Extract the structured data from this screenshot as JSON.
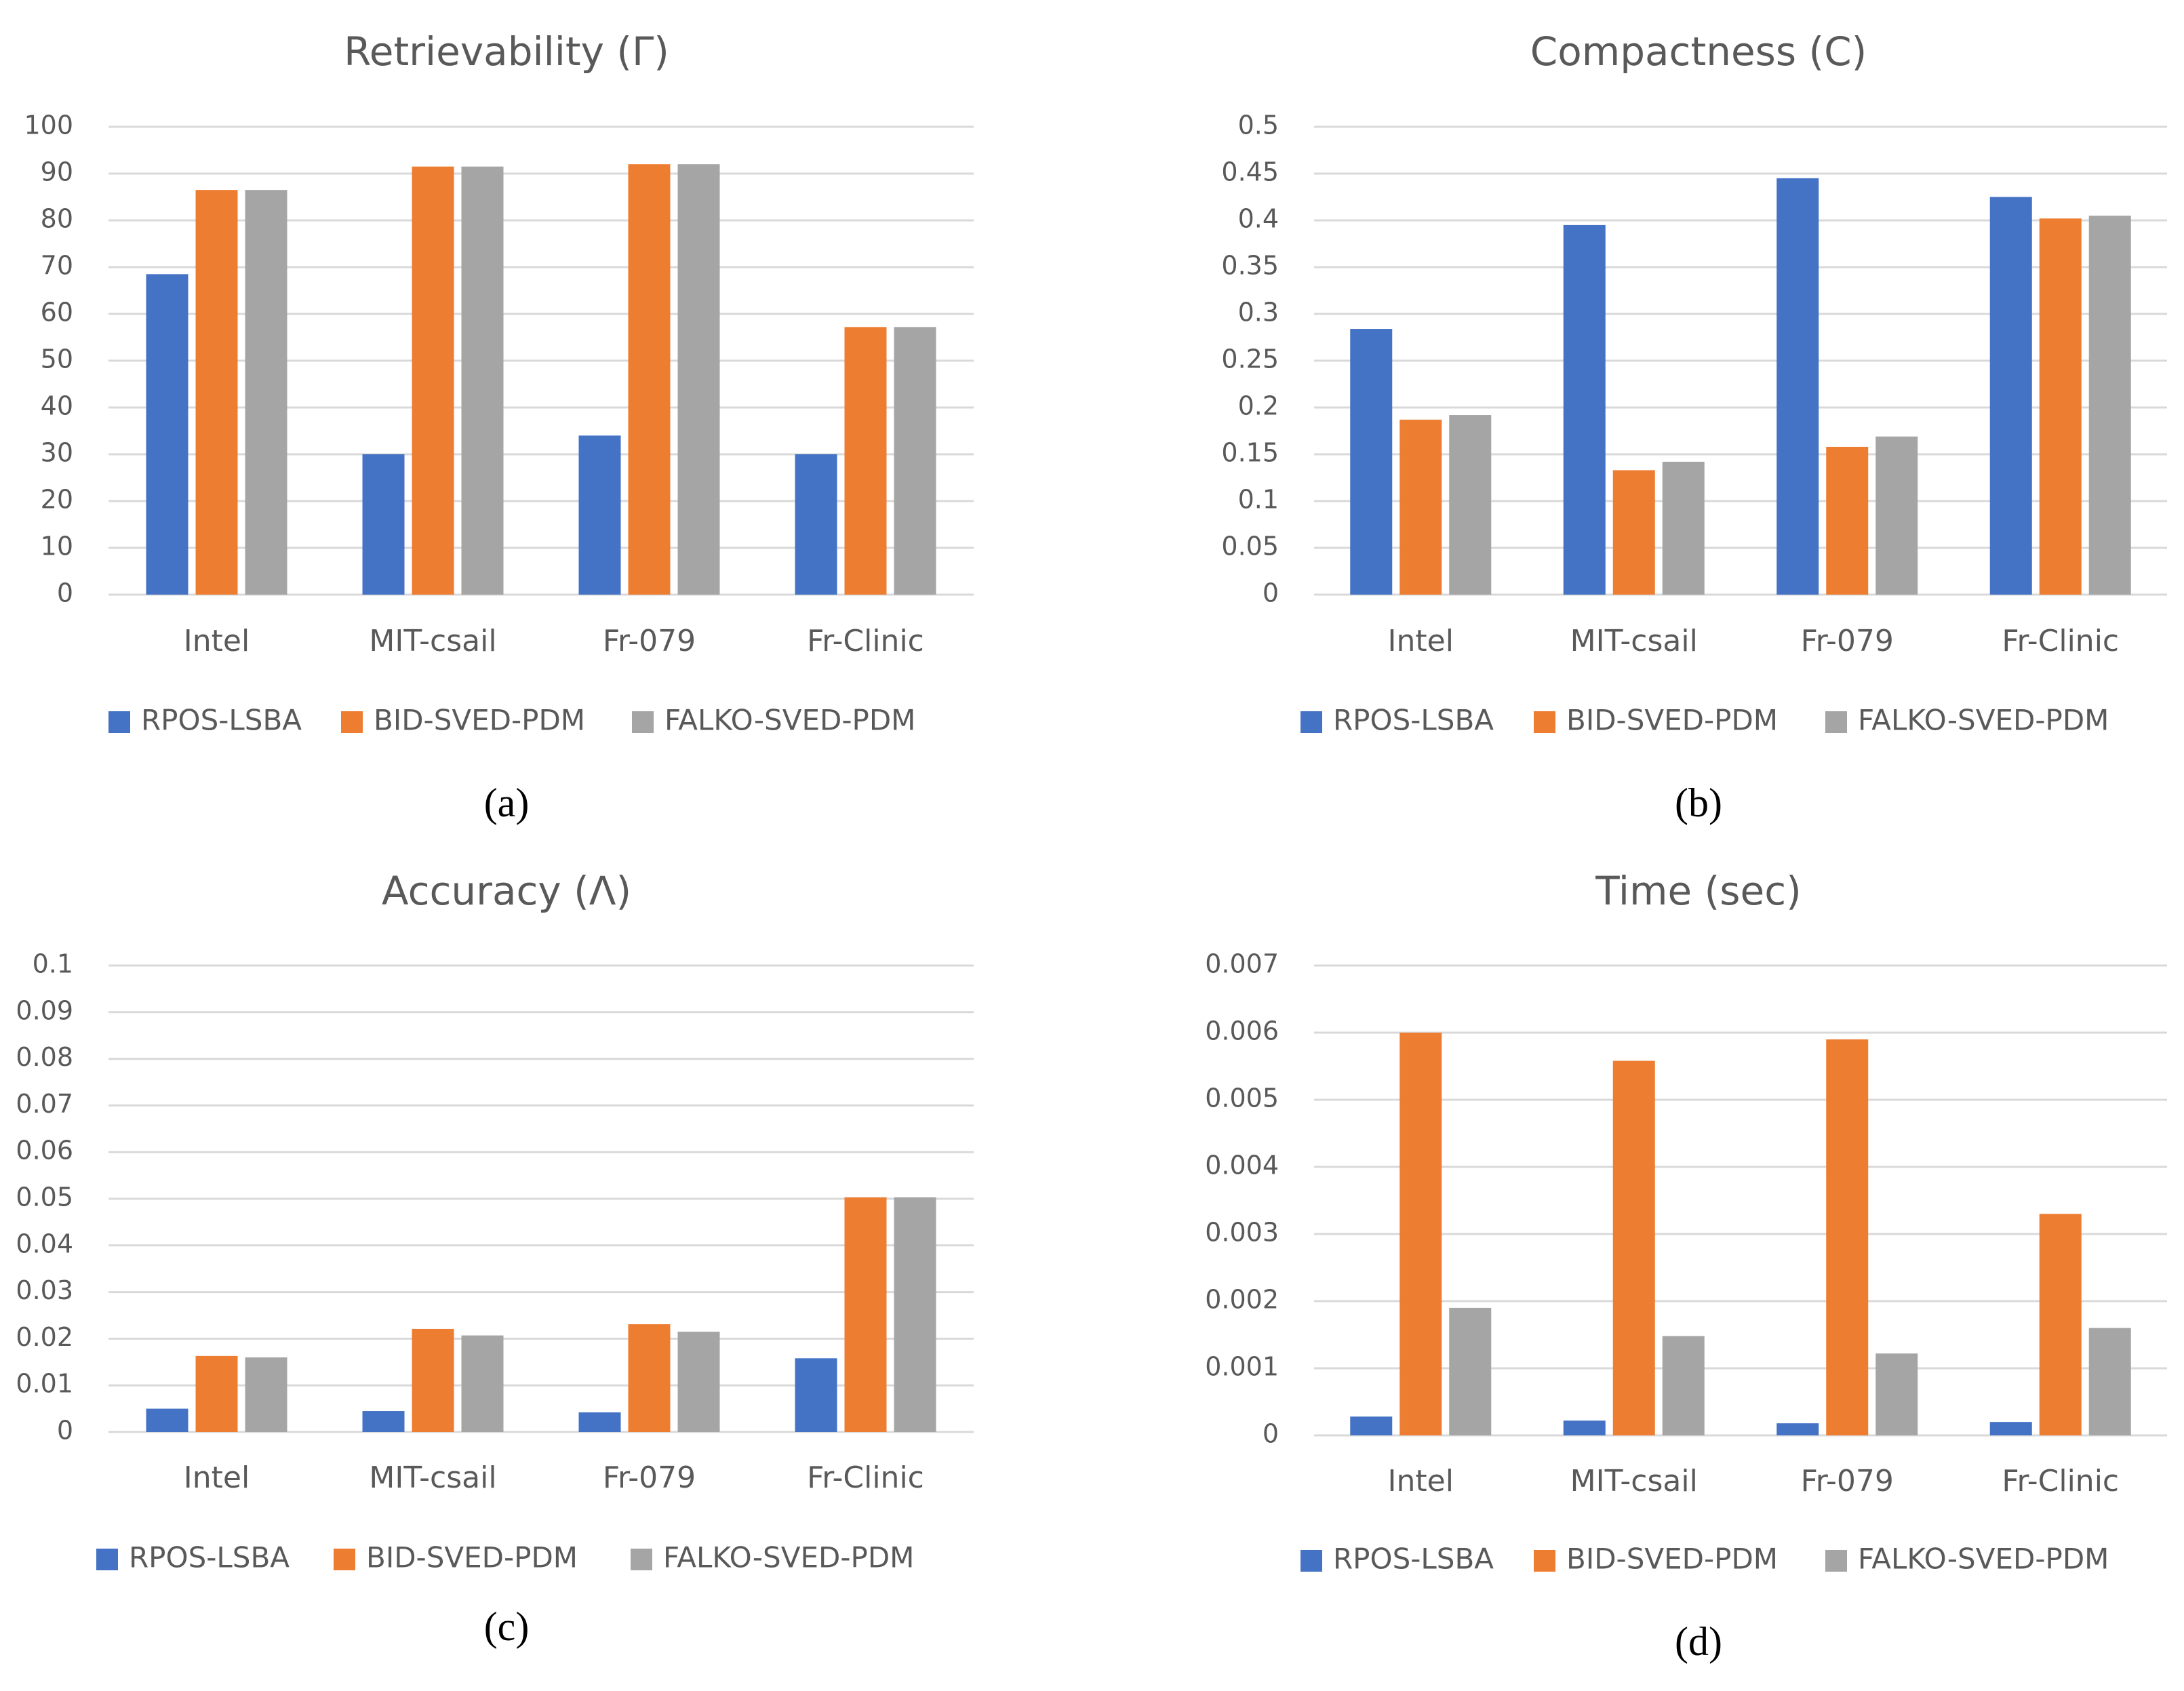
{
  "colors": {
    "RPOS-LSBA": "#4472C4",
    "BID-SVED-PDM": "#ED7D31",
    "FALKO-SVED-PDM": "#A5A5A5",
    "grid": "#D9D9D9",
    "text": "#595959"
  },
  "chart_data": [
    {
      "type": "bar",
      "title": "Retrievability (Γ)",
      "caption": "(a)",
      "categories": [
        "Intel",
        "MIT-csail",
        "Fr-079",
        "Fr-Clinic"
      ],
      "series": [
        {
          "name": "RPOS-LSBA",
          "values": [
            68.5,
            30,
            34,
            30
          ]
        },
        {
          "name": "BID-SVED-PDM",
          "values": [
            86.5,
            91.5,
            92,
            57.2
          ]
        },
        {
          "name": "FALKO-SVED-PDM",
          "values": [
            86.5,
            91.5,
            92,
            57.2
          ]
        }
      ],
      "ylim": [
        0,
        100
      ],
      "yticks": [
        "0",
        "10",
        "20",
        "30",
        "40",
        "50",
        "60",
        "70",
        "80",
        "90",
        "100"
      ],
      "grid": true,
      "legend": "bottom"
    },
    {
      "type": "bar",
      "title": "Compactness (Ϲ)",
      "caption": "(b)",
      "categories": [
        "Intel",
        "MIT-csail",
        "Fr-079",
        "Fr-Clinic"
      ],
      "series": [
        {
          "name": "RPOS-LSBA",
          "values": [
            0.284,
            0.395,
            0.445,
            0.425
          ]
        },
        {
          "name": "BID-SVED-PDM",
          "values": [
            0.187,
            0.133,
            0.158,
            0.402
          ]
        },
        {
          "name": "FALKO-SVED-PDM",
          "values": [
            0.192,
            0.142,
            0.169,
            0.405
          ]
        }
      ],
      "ylim": [
        0,
        0.5
      ],
      "yticks": [
        "0",
        "0.05",
        "0.1",
        "0.15",
        "0.2",
        "0.25",
        "0.3",
        "0.35",
        "0.4",
        "0.45",
        "0.5"
      ],
      "grid": true,
      "legend": "bottom"
    },
    {
      "type": "bar",
      "title": "Accuracy (Λ)",
      "caption": "(c)",
      "categories": [
        "Intel",
        "MIT-csail",
        "Fr-079",
        "Fr-Clinic"
      ],
      "series": [
        {
          "name": "RPOS-LSBA",
          "values": [
            0.005,
            0.0045,
            0.0042,
            0.0158
          ]
        },
        {
          "name": "BID-SVED-PDM",
          "values": [
            0.0163,
            0.0221,
            0.0231,
            0.0503
          ]
        },
        {
          "name": "FALKO-SVED-PDM",
          "values": [
            0.016,
            0.0207,
            0.0215,
            0.0503
          ]
        }
      ],
      "ylim": [
        0,
        0.1
      ],
      "yticks": [
        "0",
        "0.01",
        "0.02",
        "0.03",
        "0.04",
        "0.05",
        "0.06",
        "0.07",
        "0.08",
        "0.09",
        "0.1"
      ],
      "grid": true,
      "legend": "bottom"
    },
    {
      "type": "bar",
      "title": "Time (sec)",
      "caption": "(d)",
      "categories": [
        "Intel",
        "MIT-csail",
        "Fr-079",
        "Fr-Clinic"
      ],
      "series": [
        {
          "name": "RPOS-LSBA",
          "values": [
            0.00028,
            0.00022,
            0.00018,
            0.0002
          ]
        },
        {
          "name": "BID-SVED-PDM",
          "values": [
            0.006,
            0.00558,
            0.0059,
            0.0033
          ]
        },
        {
          "name": "FALKO-SVED-PDM",
          "values": [
            0.0019,
            0.00148,
            0.00122,
            0.0016
          ]
        }
      ],
      "ylim": [
        0,
        0.007
      ],
      "yticks": [
        "0",
        "0.001",
        "0.002",
        "0.003",
        "0.004",
        "0.005",
        "0.006",
        "0.007"
      ],
      "grid": true,
      "legend": "bottom"
    }
  ]
}
